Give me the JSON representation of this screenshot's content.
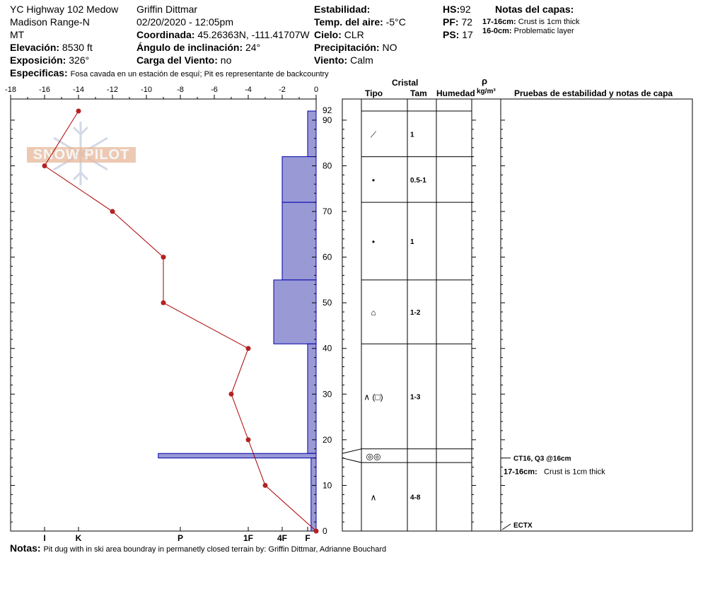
{
  "header": {
    "location": "YC Highway 102 Medow",
    "range": "Madison Range-N",
    "state": "MT",
    "observer": "Griffin Dittmar",
    "datetime": "02/20/2020 - 12:05pm",
    "elevation_label": "Elevación:",
    "elevation": "8530 ft",
    "exposure_label": "Exposición:",
    "exposure": "326°",
    "coord_label": "Coordinada:",
    "coord": "45.26363N, -111.41707W",
    "angle_label": "Ángulo de inclinación:",
    "angle": "24°",
    "wind_load_label": "Carga del Viento:",
    "wind_load": "no",
    "stability_label": "Estabilidad:",
    "stability": "",
    "air_temp_label": "Temp. del aire:",
    "air_temp": "-5°C",
    "sky_label": "Cielo:",
    "sky": "CLR",
    "precip_label": "Precipitación:",
    "precip": "NO",
    "wind_label": "Viento:",
    "wind": "Calm",
    "hs_label": "HS:",
    "hs": "92",
    "pf_label": "PF:",
    "pf": "72",
    "ps_label": "PS:",
    "ps": "17",
    "layer_notes_title": "Notas del capas:",
    "layer_notes": [
      {
        "range": "17-16cm:",
        "text": "Crust is 1cm thick"
      },
      {
        "range": "16-0cm:",
        "text": "Problematic layer"
      }
    ],
    "specifics_label": "Especificas:",
    "specifics": "Fosa cavada en un estación de esquí; Pit es representante de backcountry"
  },
  "logo_text": "SNOW PILOT",
  "table": {
    "crystal_header": "Cristal",
    "type_header": "Tipo",
    "size_header": "Tam",
    "moisture_header": "Humedad",
    "density_symbol": "ρ",
    "density_unit": "kg/m³",
    "tests_header": "Pruebas de estabilidad y notas de capa"
  },
  "footer": {
    "notes_label": "Notas:",
    "notes": "Pit dug with in ski area boundray in permanetly closed terrain by: Griffin Dittmar, Adrianne Bouchard"
  },
  "colors": {
    "hardness_fill": "#9999d6",
    "hardness_stroke": "#0000aa",
    "temp_line": "#aa0000",
    "temp_point": "#b22222"
  },
  "chart_data": {
    "type": "line",
    "title": "",
    "temperature_axis": {
      "ticks": [
        -18,
        -16,
        -14,
        -12,
        -10,
        -8,
        -6,
        -4,
        -2,
        0
      ],
      "tick_labels": [
        "-18",
        "-16",
        "-14",
        "-12",
        "-10",
        "-8",
        "-6",
        "-4",
        "-2",
        "0"
      ],
      "range": [
        -18,
        0
      ]
    },
    "hardness_axis": {
      "labels": [
        "I",
        "K",
        "P",
        "1F",
        "4F",
        "F"
      ],
      "values": [
        16,
        14,
        8,
        4,
        2,
        0.5
      ]
    },
    "depth_axis": {
      "ticks": [
        0,
        10,
        20,
        30,
        40,
        50,
        60,
        70,
        80,
        90,
        92
      ],
      "tick_labels": [
        "0",
        "10",
        "20",
        "30",
        "40",
        "50",
        "60",
        "70",
        "80",
        "90",
        "92"
      ],
      "range": [
        0,
        92
      ]
    },
    "temperature_profile": [
      {
        "depth": 92,
        "temp": -14
      },
      {
        "depth": 80,
        "temp": -16
      },
      {
        "depth": 70,
        "temp": -12
      },
      {
        "depth": 60,
        "temp": -9
      },
      {
        "depth": 50,
        "temp": -9
      },
      {
        "depth": 40,
        "temp": -4
      },
      {
        "depth": 30,
        "temp": -5
      },
      {
        "depth": 20,
        "temp": -4
      },
      {
        "depth": 10,
        "temp": -3
      },
      {
        "depth": 0,
        "temp": 0
      }
    ],
    "hardness_profile": [
      {
        "top": 92,
        "bottom": 82,
        "hardness": 0.5
      },
      {
        "top": 82,
        "bottom": 72,
        "hardness": 2
      },
      {
        "top": 72,
        "bottom": 55,
        "hardness": 2
      },
      {
        "top": 55,
        "bottom": 41,
        "hardness": 2.5
      },
      {
        "top": 41,
        "bottom": 17,
        "hardness": 0.5
      },
      {
        "top": 17,
        "bottom": 16,
        "hardness": 9.3
      },
      {
        "top": 16,
        "bottom": 0,
        "hardness": 0.3
      }
    ],
    "layers": [
      {
        "top": 92,
        "bottom": 82,
        "grain": "⟋",
        "size": "1"
      },
      {
        "top": 82,
        "bottom": 72,
        "grain": "•",
        "size": "0.5-1"
      },
      {
        "top": 72,
        "bottom": 55,
        "grain": "•",
        "size": "1"
      },
      {
        "top": 55,
        "bottom": 41,
        "grain": "⌂",
        "size": "1-2"
      },
      {
        "top": 41,
        "bottom": 18,
        "grain": "∧ (□)",
        "size": "1-3"
      },
      {
        "top": 18,
        "bottom": 15,
        "grain": "◎◎",
        "size": ""
      },
      {
        "top": 15,
        "bottom": 0,
        "grain": "∧",
        "size": "4-8"
      }
    ],
    "tests": [
      {
        "depth": 16,
        "label": "CT16, Q3 @16cm"
      },
      {
        "depth": 0,
        "label": "ECTX"
      }
    ],
    "layer_note": {
      "range": "17-16cm:",
      "text": "Crust is 1cm thick"
    }
  }
}
